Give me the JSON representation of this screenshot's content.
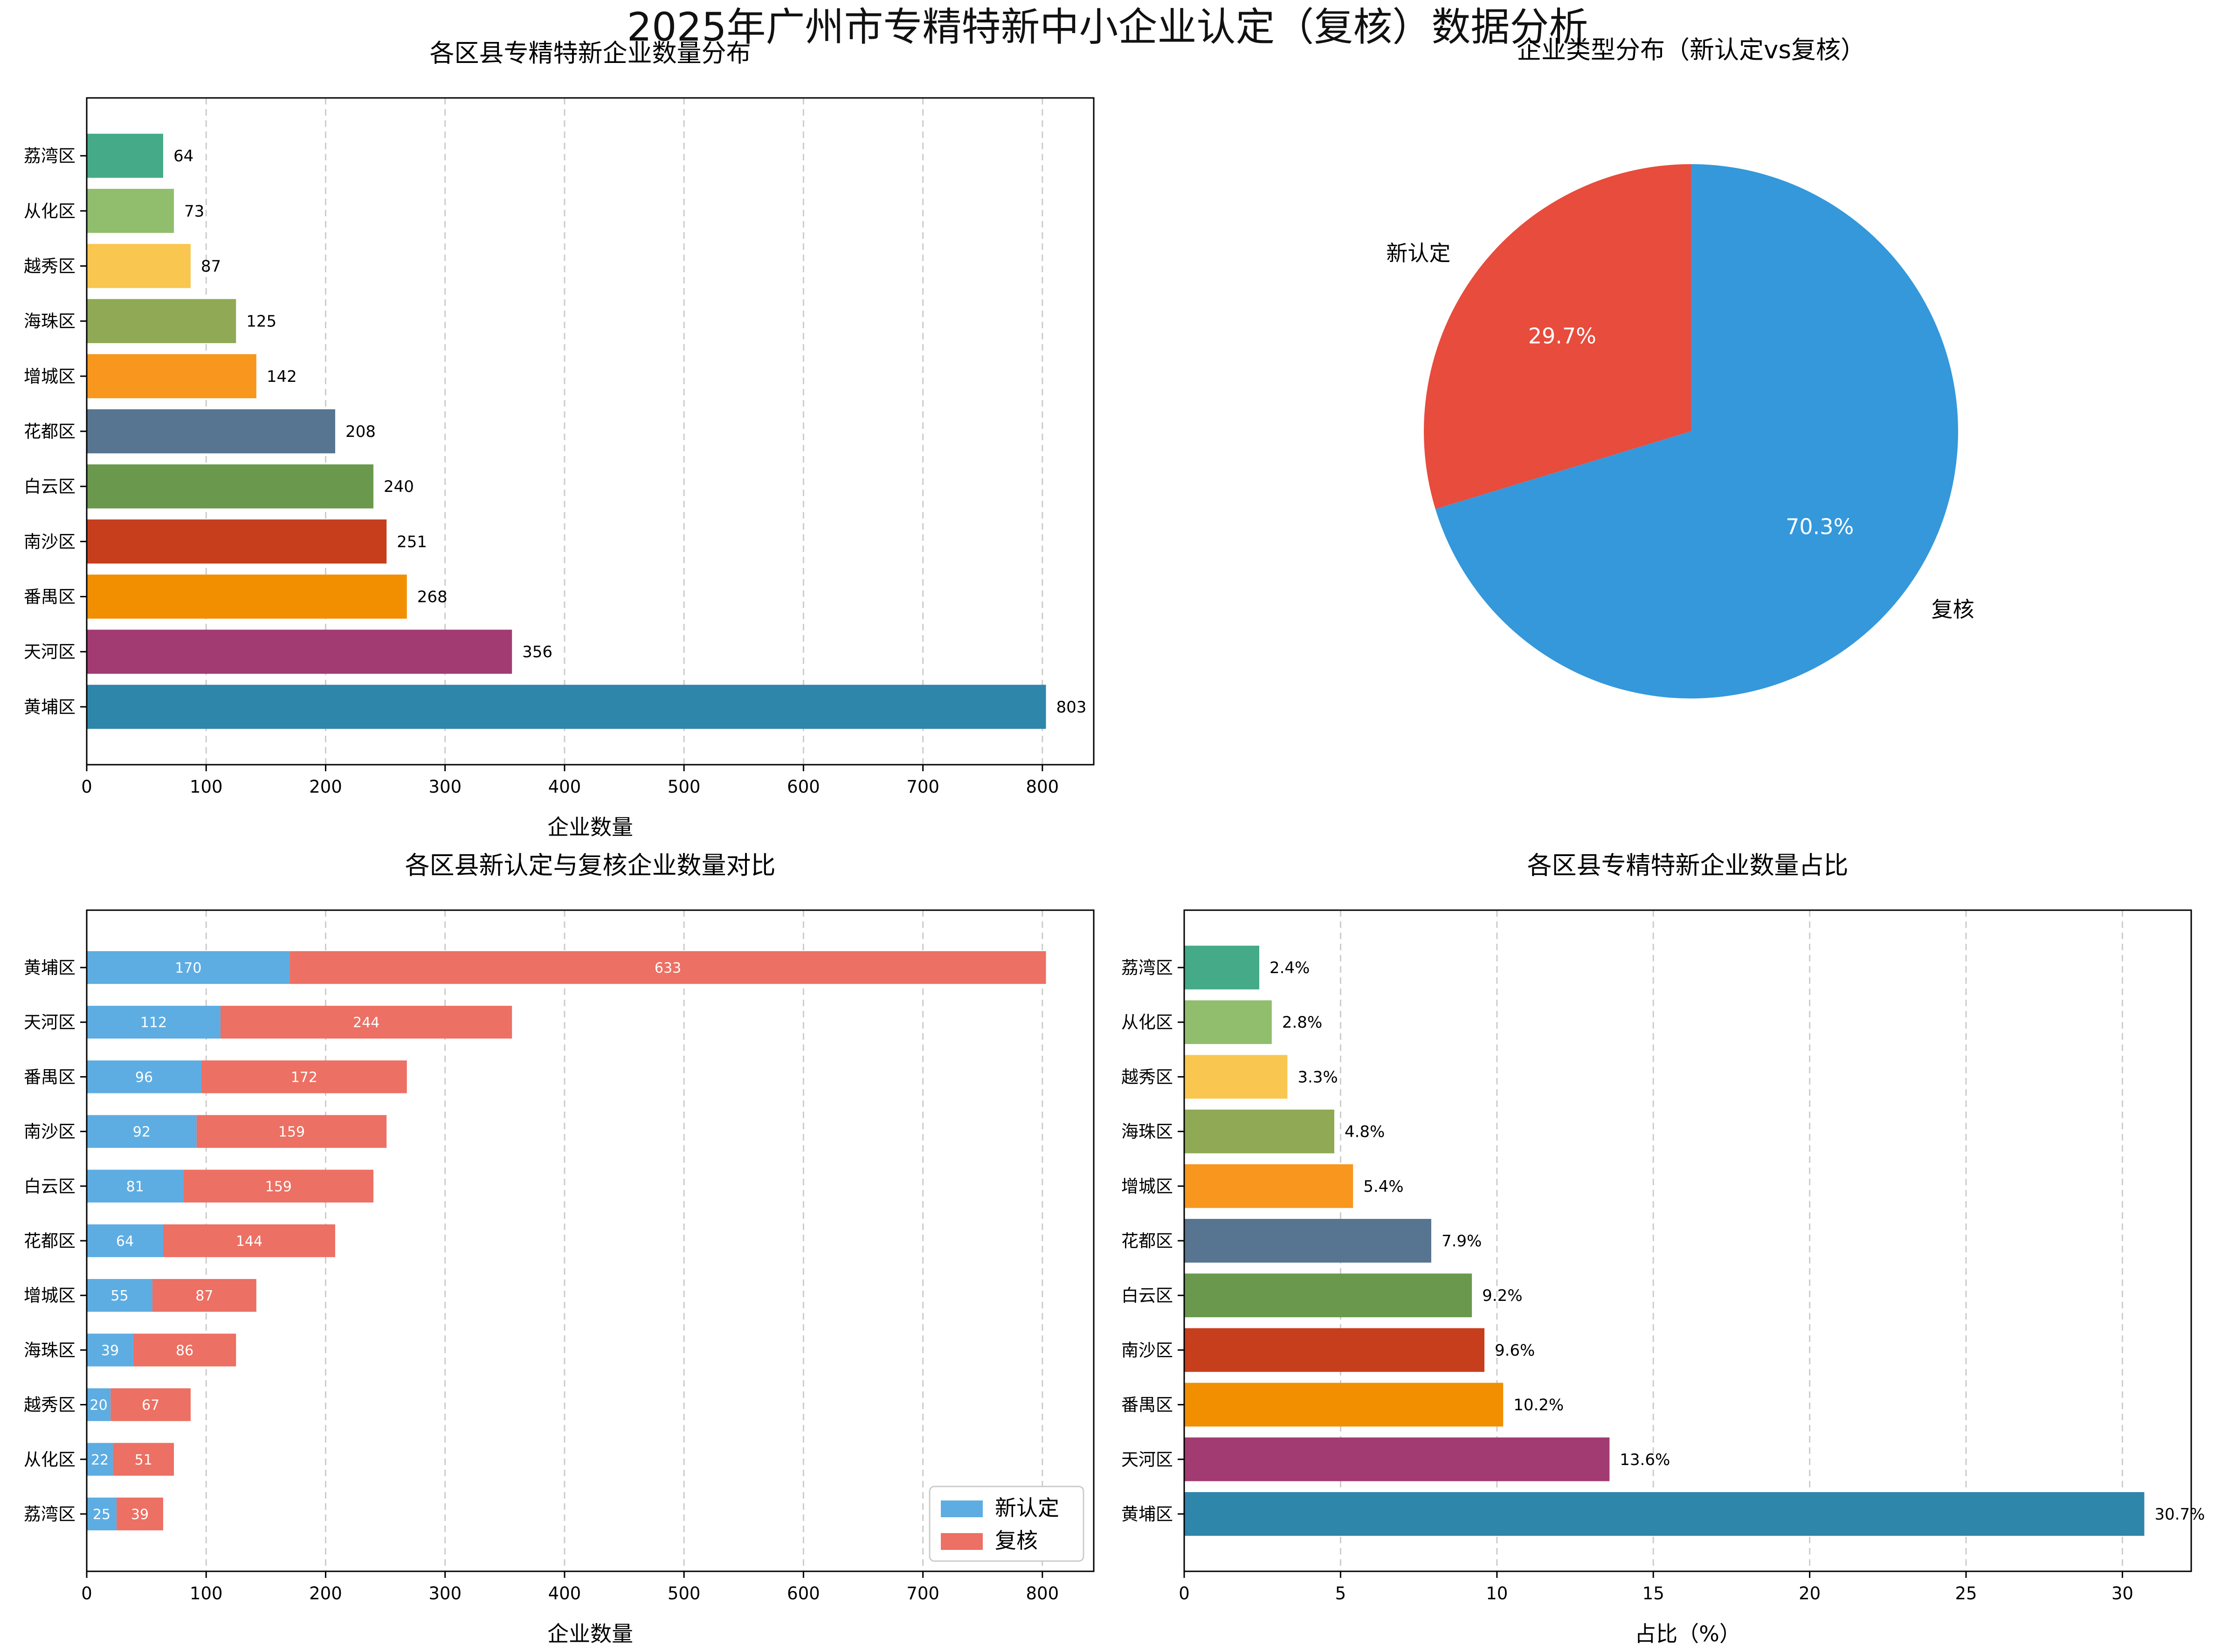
{
  "figure": {
    "title": "2025年广州市专精特新中小企业认定（复核）数据分析"
  },
  "chart_data": [
    {
      "type": "bar",
      "orientation": "horizontal",
      "title": "各区县专精特新企业数量分布",
      "xlabel": "企业数量",
      "ylabel": "",
      "xlim": [
        0,
        843
      ],
      "xticks": [
        0,
        100,
        200,
        300,
        400,
        500,
        600,
        700,
        800
      ],
      "grid": "x, dashed",
      "categories": [
        "荔湾区",
        "从化区",
        "越秀区",
        "海珠区",
        "增城区",
        "花都区",
        "白云区",
        "南沙区",
        "番禺区",
        "天河区",
        "黄埔区"
      ],
      "values": [
        64,
        73,
        87,
        125,
        142,
        208,
        240,
        251,
        268,
        356,
        803
      ],
      "value_labels": [
        "64",
        "73",
        "87",
        "125",
        "142",
        "208",
        "240",
        "251",
        "268",
        "356",
        "803"
      ],
      "colors": [
        "#44aa88",
        "#90be6d",
        "#f9c74f",
        "#90a955",
        "#f8961e",
        "#577590",
        "#6a994e",
        "#c73e1d",
        "#f18f01",
        "#a23b72",
        "#2e86ab"
      ]
    },
    {
      "type": "pie",
      "title": "企业类型分布（新认定vs复核）",
      "labels": [
        "新认定",
        "复核"
      ],
      "values": [
        29.7,
        70.3
      ],
      "pct_labels": [
        "29.7%",
        "70.3%"
      ],
      "colors": [
        "#e74c3c",
        "#3498db"
      ],
      "start_angle_deg": 90
    },
    {
      "type": "bar",
      "orientation": "horizontal",
      "stacked": true,
      "title": "各区县新认定与复核企业数量对比",
      "xlabel": "企业数量",
      "ylabel": "",
      "xlim": [
        0,
        843
      ],
      "xticks": [
        0,
        100,
        200,
        300,
        400,
        500,
        600,
        700,
        800
      ],
      "grid": "x, dashed",
      "legend_position": "lower-right",
      "categories": [
        "黄埔区",
        "天河区",
        "番禺区",
        "南沙区",
        "白云区",
        "花都区",
        "增城区",
        "海珠区",
        "越秀区",
        "从化区",
        "荔湾区"
      ],
      "series": [
        {
          "name": "新认定",
          "color": "#5dade2",
          "values": [
            170,
            112,
            96,
            92,
            81,
            64,
            55,
            39,
            20,
            22,
            25
          ],
          "labels": [
            "170",
            "112",
            "96",
            "92",
            "81",
            "64",
            "55",
            "39",
            "20",
            "22",
            "25"
          ]
        },
        {
          "name": "复核",
          "color": "#ec7063",
          "values": [
            633,
            244,
            172,
            159,
            159,
            144,
            87,
            86,
            67,
            51,
            39
          ],
          "labels": [
            "633",
            "244",
            "172",
            "159",
            "159",
            "144",
            "87",
            "86",
            "67",
            "51",
            "39"
          ]
        }
      ]
    },
    {
      "type": "bar",
      "orientation": "horizontal",
      "title": "各区县专精特新企业数量占比",
      "xlabel": "占比（%）",
      "ylabel": "",
      "xlim": [
        0,
        32.2
      ],
      "xticks": [
        0,
        5,
        10,
        15,
        20,
        25,
        30
      ],
      "grid": "x, dashed",
      "categories": [
        "荔湾区",
        "从化区",
        "越秀区",
        "海珠区",
        "增城区",
        "花都区",
        "白云区",
        "南沙区",
        "番禺区",
        "天河区",
        "黄埔区"
      ],
      "values": [
        2.4,
        2.8,
        3.3,
        4.8,
        5.4,
        7.9,
        9.2,
        9.6,
        10.2,
        13.6,
        30.7
      ],
      "value_labels": [
        "2.4%",
        "2.8%",
        "3.3%",
        "4.8%",
        "5.4%",
        "7.9%",
        "9.2%",
        "9.6%",
        "10.2%",
        "13.6%",
        "30.7%"
      ],
      "colors": [
        "#44aa88",
        "#90be6d",
        "#f9c74f",
        "#90a955",
        "#f8961e",
        "#577590",
        "#6a994e",
        "#c73e1d",
        "#f18f01",
        "#a23b72",
        "#2e86ab"
      ]
    }
  ]
}
